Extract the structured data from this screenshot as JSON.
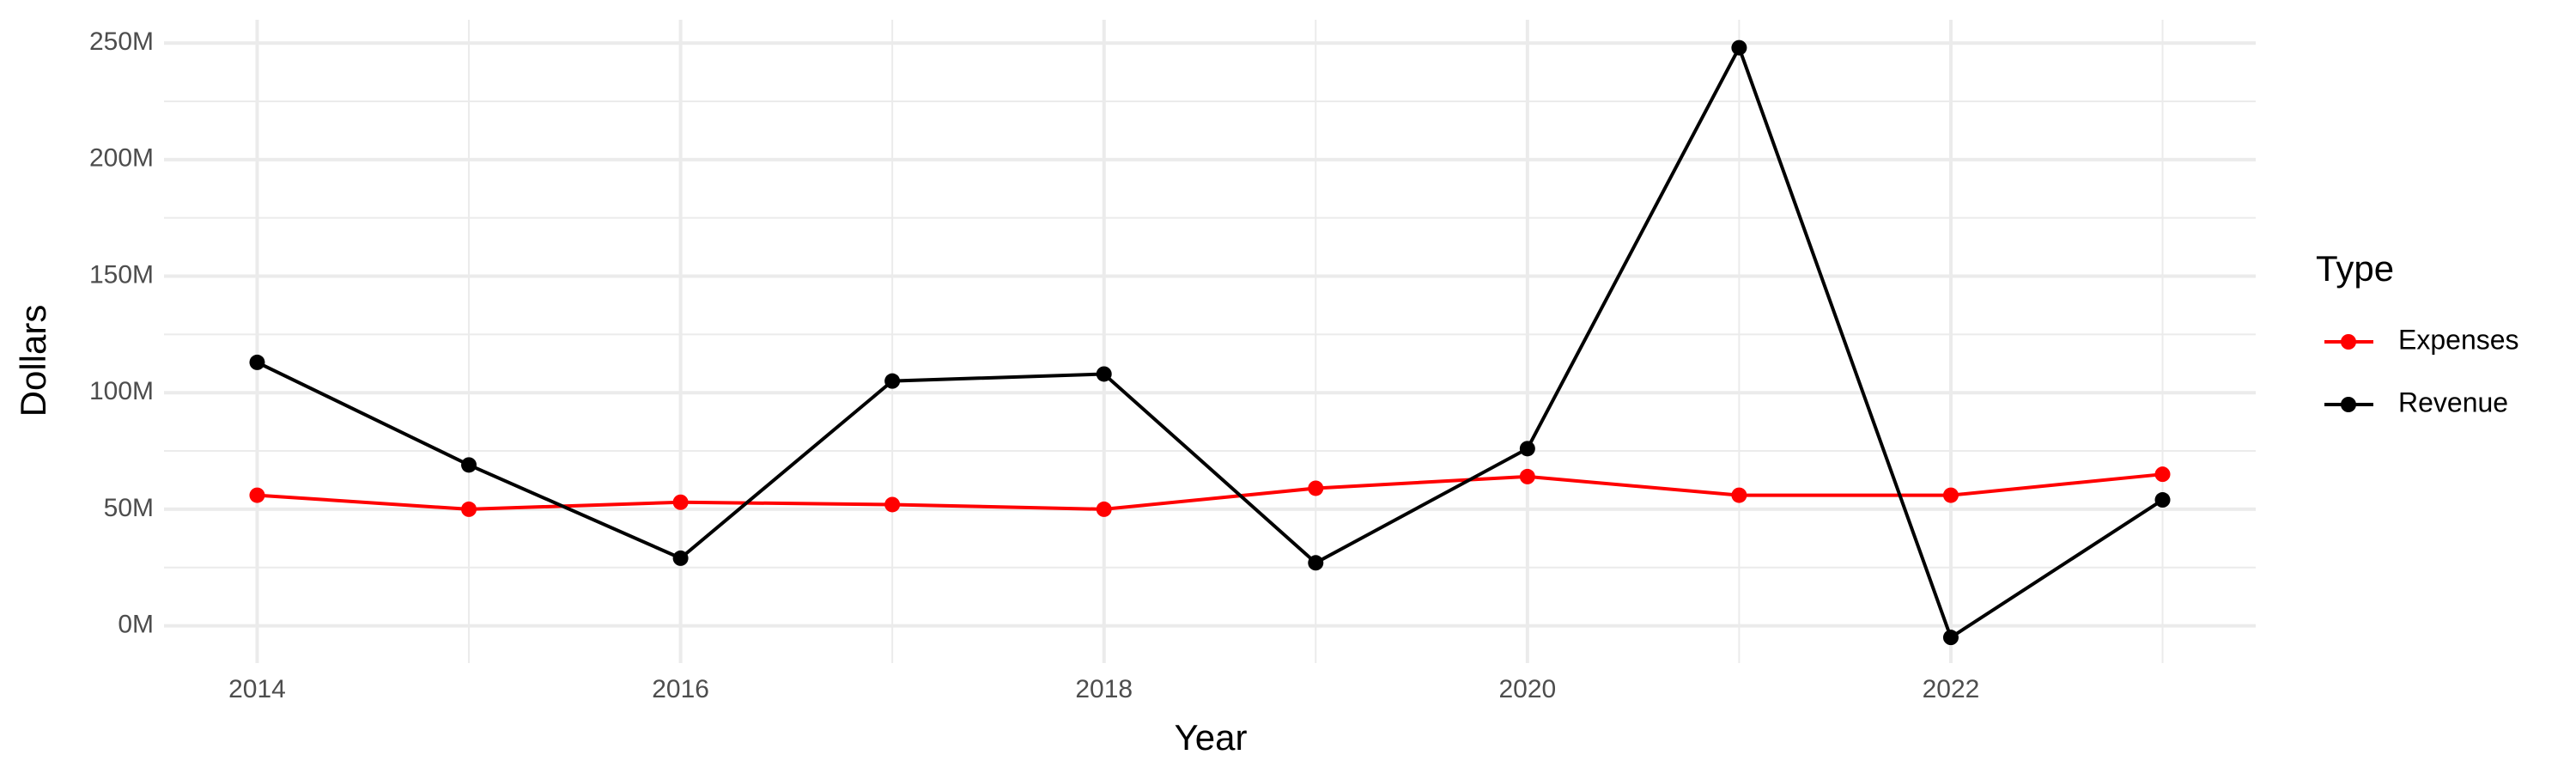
{
  "chart_data": {
    "type": "line",
    "x_label": "Year",
    "y_label": "Dollars",
    "legend_title": "Type",
    "legend_position": "right",
    "x": [
      2014,
      2015,
      2016,
      2017,
      2018,
      2019,
      2020,
      2021,
      2022,
      2023
    ],
    "series": [
      {
        "name": "Expenses",
        "color": "#ff0000",
        "values": [
          56000000,
          50000000,
          53000000,
          52000000,
          50000000,
          59000000,
          64000000,
          56000000,
          56000000,
          65000000
        ]
      },
      {
        "name": "Revenue",
        "color": "#000000",
        "values": [
          113000000,
          69000000,
          29000000,
          105000000,
          108000000,
          27000000,
          76000000,
          248000000,
          -5000000,
          54000000
        ]
      }
    ],
    "xlim": [
      2013.56,
      2023.44
    ],
    "xticks": [
      2014,
      2016,
      2018,
      2020,
      2022
    ],
    "ylim": [
      -16000000,
      260000000
    ],
    "yticks": [
      {
        "value": 0,
        "label": "0M"
      },
      {
        "value": 50000000,
        "label": "50M"
      },
      {
        "value": 100000000,
        "label": "100M"
      },
      {
        "value": 150000000,
        "label": "150M"
      },
      {
        "value": 200000000,
        "label": "200M"
      },
      {
        "value": 250000000,
        "label": "250M"
      }
    ],
    "grid": true
  }
}
